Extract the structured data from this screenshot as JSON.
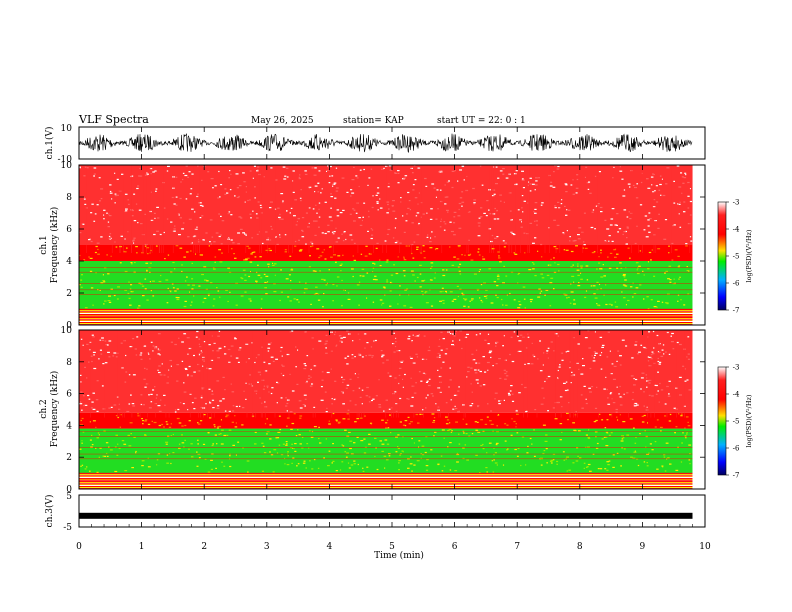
{
  "header": {
    "title": "VLF Spectra",
    "date": "May 26, 2025",
    "station": "station= KAP",
    "start": "start  UT  =   22: 0  : 1"
  },
  "chart_data": [
    {
      "type": "line",
      "name": "ch1-waveform",
      "ylabel": "ch.1(V)",
      "ylim": [
        -10,
        10
      ],
      "yticks": [
        "10",
        "-10"
      ],
      "x_range_min": [
        0,
        9.8
      ],
      "signal_amplitude_V": 6
    },
    {
      "type": "heatmap",
      "name": "ch1-spectrogram",
      "ylabel_top": "ch.1",
      "ylabel": "Frequency (kHz)",
      "ylim": [
        0,
        10
      ],
      "yticks": [
        "0",
        "2",
        "4",
        "6",
        "8",
        "10"
      ],
      "bands_khz": [
        {
          "from": 0,
          "to": 1,
          "level": "mixed"
        },
        {
          "from": 1,
          "to": 4,
          "level": -5
        },
        {
          "from": 4,
          "to": 5,
          "level": -4.3
        },
        {
          "from": 5,
          "to": 10,
          "level": -3.7
        }
      ],
      "colorbar": {
        "min": -7,
        "max": -3,
        "ticks": [
          "-3",
          "-4",
          "-5",
          "-6",
          "-7"
        ],
        "label": "log(PSD)(V²/Hz)"
      }
    },
    {
      "type": "heatmap",
      "name": "ch2-spectrogram",
      "ylabel_top": "ch.2",
      "ylabel": "Frequency (kHz)",
      "ylim": [
        0,
        10
      ],
      "yticks": [
        "0",
        "2",
        "4",
        "6",
        "8",
        "10"
      ],
      "bands_khz": [
        {
          "from": 0,
          "to": 1,
          "level": "mixed"
        },
        {
          "from": 1,
          "to": 3.8,
          "level": -5.1
        },
        {
          "from": 3.8,
          "to": 4.8,
          "level": -4.3
        },
        {
          "from": 4.8,
          "to": 10,
          "level": -3.7
        }
      ],
      "colorbar": {
        "min": -7,
        "max": -3,
        "ticks": [
          "-3",
          "-4",
          "-5",
          "-6",
          "-7"
        ],
        "label": "log(PSD)(V²/Hz)"
      }
    },
    {
      "type": "line",
      "name": "ch3-waveform",
      "ylabel": "ch.3(V)",
      "ylim": [
        -5,
        5
      ],
      "yticks": [
        "5",
        "-5"
      ],
      "signal_level_V": -1.5
    }
  ],
  "xaxis": {
    "label": "Time (min)",
    "xlim": [
      0,
      10
    ],
    "ticks": [
      "0",
      "1",
      "2",
      "3",
      "4",
      "5",
      "6",
      "7",
      "8",
      "9",
      "10"
    ],
    "data_end_min": 9.8
  }
}
